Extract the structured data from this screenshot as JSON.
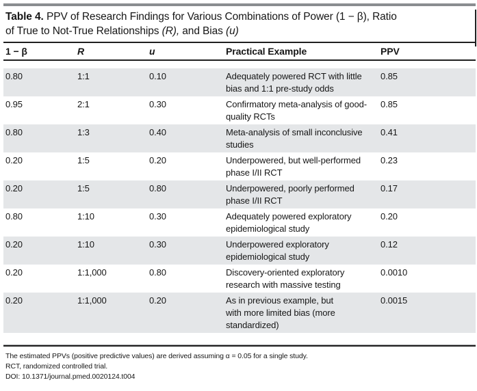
{
  "document": {
    "background": "#ffffff"
  },
  "table": {
    "title": {
      "label": "Table 4.",
      "segments": [
        {
          "text": " PPV of Research Findings for Various Combinations of Power (1 − β), Ratio\nof True to Not-True Relationships ",
          "style": "normal"
        },
        {
          "text": "(R),",
          "style": "italic"
        },
        {
          "text": " and Bias ",
          "style": "normal"
        },
        {
          "text": "(u)",
          "style": "italic"
        }
      ]
    },
    "columns": [
      {
        "label": "1 − β"
      },
      {
        "label": "R"
      },
      {
        "label": "u"
      },
      {
        "label": "Practical Example"
      },
      {
        "label": "PPV"
      }
    ],
    "rows": [
      {
        "power": "0.80",
        "r": "1:1",
        "u": "0.10",
        "example": "Adequately powered RCT with little\nbias and 1:1 pre-study odds",
        "ppv": "0.85"
      },
      {
        "power": "0.95",
        "r": "2:1",
        "u": "0.30",
        "example": "Confirmatory meta-analysis of good-\nquality RCTs",
        "ppv": "0.85"
      },
      {
        "power": "0.80",
        "r": "1:3",
        "u": "0.40",
        "example": "Meta-analysis of small inconclusive\nstudies",
        "ppv": "0.41"
      },
      {
        "power": "0.20",
        "r": "1:5",
        "u": "0.20",
        "example": "Underpowered, but well-performed\nphase I/II RCT",
        "ppv": "0.23"
      },
      {
        "power": "0.20",
        "r": "1:5",
        "u": "0.80",
        "example": "Underpowered, poorly performed\nphase I/II RCT",
        "ppv": "0.17"
      },
      {
        "power": "0.80",
        "r": "1:10",
        "u": "0.30",
        "example": "Adequately powered exploratory\nepidemiological study",
        "ppv": "0.20"
      },
      {
        "power": "0.20",
        "r": "1:10",
        "u": "0.30",
        "example": "Underpowered exploratory\nepidemiological study",
        "ppv": "0.12"
      },
      {
        "power": "0.20",
        "r": "1:1,000",
        "u": "0.80",
        "example": "Discovery-oriented exploratory\nresearch with massive testing",
        "ppv": "0.0010"
      },
      {
        "power": "0.20",
        "r": "1:1,000",
        "u": "0.20",
        "example": "As in previous example, but\nwith more limited bias (more\nstandardized)",
        "ppv": "0.0015"
      }
    ],
    "footnotes": [
      "The estimated PPVs (positive predictive values) are derived assuming α = 0.05 for a single study.",
      "RCT, randomized controlled trial.",
      "DOI: 10.1371/journal.pmed.0020124.t004"
    ],
    "colors": {
      "row_shade": "#e4e6e8",
      "rule_gray": "#8a8d90",
      "rule_dark": "#1f1f1f",
      "text": "#161616"
    }
  }
}
